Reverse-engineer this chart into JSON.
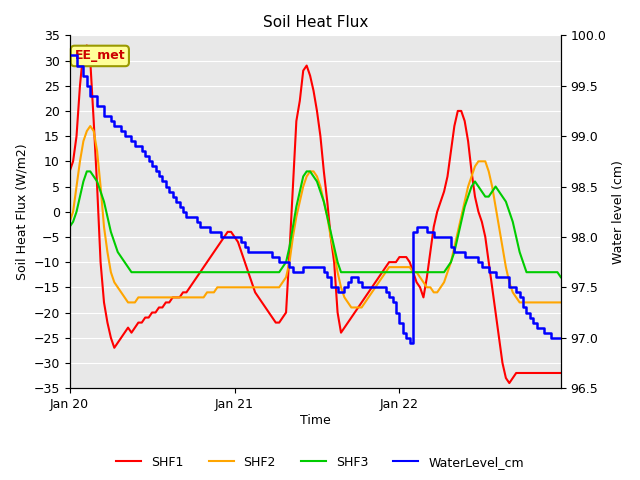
{
  "title": "Soil Heat Flux",
  "ylabel_left": "Soil Heat Flux (W/m2)",
  "ylabel_right": "Water level (cm)",
  "xlabel": "Time",
  "ylim_left": [
    -35,
    35
  ],
  "ylim_right": [
    96.5,
    100.0
  ],
  "bg_color": "#e8e8e8",
  "annotation_text": "EE_met",
  "annotation_bg": "#ffff99",
  "annotation_border": "#999900",
  "annotation_text_color": "#cc0000",
  "legend_entries": [
    "SHF1",
    "SHF2",
    "SHF3",
    "WaterLevel_cm"
  ],
  "colors": {
    "SHF1": "#ff0000",
    "SHF2": "#ffa500",
    "SHF3": "#00cc00",
    "WaterLevel_cm": "#0000ff"
  },
  "x_ticks": [
    0,
    48,
    96
  ],
  "x_tick_labels": [
    "Jan 20",
    "Jan 21",
    "Jan 22"
  ],
  "yticks_left": [
    -35,
    -30,
    -25,
    -20,
    -15,
    -10,
    -5,
    0,
    5,
    10,
    15,
    20,
    25,
    30,
    35
  ],
  "yticks_right": [
    96.5,
    97.0,
    97.5,
    98.0,
    98.5,
    99.0,
    99.5,
    100.0
  ],
  "n_points": 144,
  "SHF1": [
    8,
    10,
    15,
    25,
    32,
    33,
    30,
    18,
    5,
    -10,
    -18,
    -22,
    -25,
    -27,
    -26,
    -25,
    -24,
    -23,
    -24,
    -23,
    -22,
    -22,
    -21,
    -21,
    -20,
    -20,
    -19,
    -19,
    -18,
    -18,
    -17,
    -17,
    -17,
    -16,
    -16,
    -15,
    -14,
    -13,
    -12,
    -11,
    -10,
    -9,
    -8,
    -7,
    -6,
    -5,
    -4,
    -4,
    -5,
    -6,
    -8,
    -10,
    -12,
    -14,
    -16,
    -17,
    -18,
    -19,
    -20,
    -21,
    -22,
    -22,
    -21,
    -20,
    -8,
    5,
    18,
    22,
    28,
    29,
    27,
    24,
    20,
    15,
    8,
    2,
    -5,
    -10,
    -20,
    -24,
    -23,
    -22,
    -21,
    -20,
    -19,
    -18,
    -17,
    -16,
    -15,
    -14,
    -13,
    -12,
    -11,
    -10,
    -10,
    -10,
    -9,
    -9,
    -9,
    -10,
    -12,
    -14,
    -15,
    -17,
    -13,
    -8,
    -3,
    0,
    2,
    4,
    7,
    12,
    17,
    20,
    20,
    18,
    14,
    8,
    3,
    0,
    -2,
    -5,
    -10,
    -15,
    -20,
    -25,
    -30,
    -33,
    -34,
    -33,
    -32,
    -32,
    -32,
    -32,
    -32,
    -32,
    -32,
    -32,
    -32,
    -32,
    -32,
    -32,
    -32,
    -32
  ],
  "SHF2": [
    -2,
    0,
    5,
    10,
    14,
    16,
    17,
    16,
    12,
    5,
    -3,
    -8,
    -12,
    -14,
    -15,
    -16,
    -17,
    -18,
    -18,
    -18,
    -17,
    -17,
    -17,
    -17,
    -17,
    -17,
    -17,
    -17,
    -17,
    -17,
    -17,
    -17,
    -17,
    -17,
    -17,
    -17,
    -17,
    -17,
    -17,
    -17,
    -16,
    -16,
    -16,
    -15,
    -15,
    -15,
    -15,
    -15,
    -15,
    -15,
    -15,
    -15,
    -15,
    -15,
    -15,
    -15,
    -15,
    -15,
    -15,
    -15,
    -15,
    -15,
    -14,
    -13,
    -10,
    -5,
    -1,
    2,
    5,
    7,
    8,
    8,
    7,
    5,
    2,
    -1,
    -5,
    -8,
    -12,
    -15,
    -17,
    -18,
    -19,
    -19,
    -19,
    -19,
    -18,
    -17,
    -16,
    -15,
    -14,
    -13,
    -12,
    -11,
    -11,
    -11,
    -11,
    -11,
    -11,
    -11,
    -12,
    -12,
    -13,
    -14,
    -15,
    -15,
    -16,
    -16,
    -15,
    -14,
    -12,
    -10,
    -7,
    -4,
    -1,
    2,
    5,
    7,
    9,
    10,
    10,
    10,
    8,
    5,
    1,
    -3,
    -7,
    -11,
    -14,
    -16,
    -17,
    -18,
    -18,
    -18,
    -18,
    -18,
    -18,
    -18,
    -18,
    -18,
    -18,
    -18,
    -18,
    -18
  ],
  "SHF3": [
    -3,
    -2,
    0,
    3,
    6,
    8,
    8,
    7,
    6,
    4,
    2,
    -1,
    -4,
    -6,
    -8,
    -9,
    -10,
    -11,
    -12,
    -12,
    -12,
    -12,
    -12,
    -12,
    -12,
    -12,
    -12,
    -12,
    -12,
    -12,
    -12,
    -12,
    -12,
    -12,
    -12,
    -12,
    -12,
    -12,
    -12,
    -12,
    -12,
    -12,
    -12,
    -12,
    -12,
    -12,
    -12,
    -12,
    -12,
    -12,
    -12,
    -12,
    -12,
    -12,
    -12,
    -12,
    -12,
    -12,
    -12,
    -12,
    -12,
    -12,
    -11,
    -10,
    -7,
    -3,
    1,
    4,
    7,
    8,
    8,
    7,
    6,
    4,
    2,
    -1,
    -4,
    -7,
    -10,
    -12,
    -12,
    -12,
    -12,
    -12,
    -12,
    -12,
    -12,
    -12,
    -12,
    -12,
    -12,
    -12,
    -12,
    -12,
    -12,
    -12,
    -12,
    -12,
    -12,
    -12,
    -12,
    -12,
    -12,
    -12,
    -12,
    -12,
    -12,
    -12,
    -12,
    -12,
    -11,
    -10,
    -8,
    -5,
    -2,
    1,
    3,
    5,
    6,
    5,
    4,
    3,
    3,
    4,
    5,
    4,
    3,
    2,
    0,
    -2,
    -5,
    -8,
    -10,
    -12,
    -12,
    -12,
    -12,
    -12,
    -12,
    -12,
    -12,
    -12,
    -12,
    -13
  ],
  "WaterLevel_cm": [
    99.8,
    99.8,
    99.7,
    99.7,
    99.6,
    99.5,
    99.4,
    99.4,
    99.3,
    99.3,
    99.2,
    99.2,
    99.15,
    99.1,
    99.1,
    99.05,
    99.0,
    99.0,
    98.95,
    98.9,
    98.9,
    98.85,
    98.8,
    98.75,
    98.7,
    98.65,
    98.6,
    98.55,
    98.5,
    98.45,
    98.4,
    98.35,
    98.3,
    98.25,
    98.2,
    98.2,
    98.2,
    98.15,
    98.1,
    98.1,
    98.1,
    98.05,
    98.05,
    98.05,
    98.0,
    98.0,
    98.0,
    98.0,
    98.0,
    98.0,
    97.95,
    97.9,
    97.85,
    97.85,
    97.85,
    97.85,
    97.85,
    97.85,
    97.85,
    97.8,
    97.8,
    97.75,
    97.75,
    97.75,
    97.7,
    97.65,
    97.65,
    97.65,
    97.7,
    97.7,
    97.7,
    97.7,
    97.7,
    97.7,
    97.65,
    97.6,
    97.5,
    97.5,
    97.45,
    97.45,
    97.5,
    97.55,
    97.6,
    97.6,
    97.55,
    97.5,
    97.5,
    97.5,
    97.5,
    97.5,
    97.5,
    97.5,
    97.45,
    97.4,
    97.35,
    97.25,
    97.15,
    97.05,
    97.0,
    96.95,
    98.05,
    98.1,
    98.1,
    98.1,
    98.05,
    98.05,
    98.0,
    98.0,
    98.0,
    98.0,
    98.0,
    97.9,
    97.85,
    97.85,
    97.85,
    97.8,
    97.8,
    97.8,
    97.8,
    97.75,
    97.7,
    97.7,
    97.65,
    97.65,
    97.6,
    97.6,
    97.6,
    97.6,
    97.5,
    97.5,
    97.45,
    97.4,
    97.3,
    97.25,
    97.2,
    97.15,
    97.1,
    97.1,
    97.05,
    97.05,
    97.0,
    97.0,
    97.0,
    97.0
  ]
}
